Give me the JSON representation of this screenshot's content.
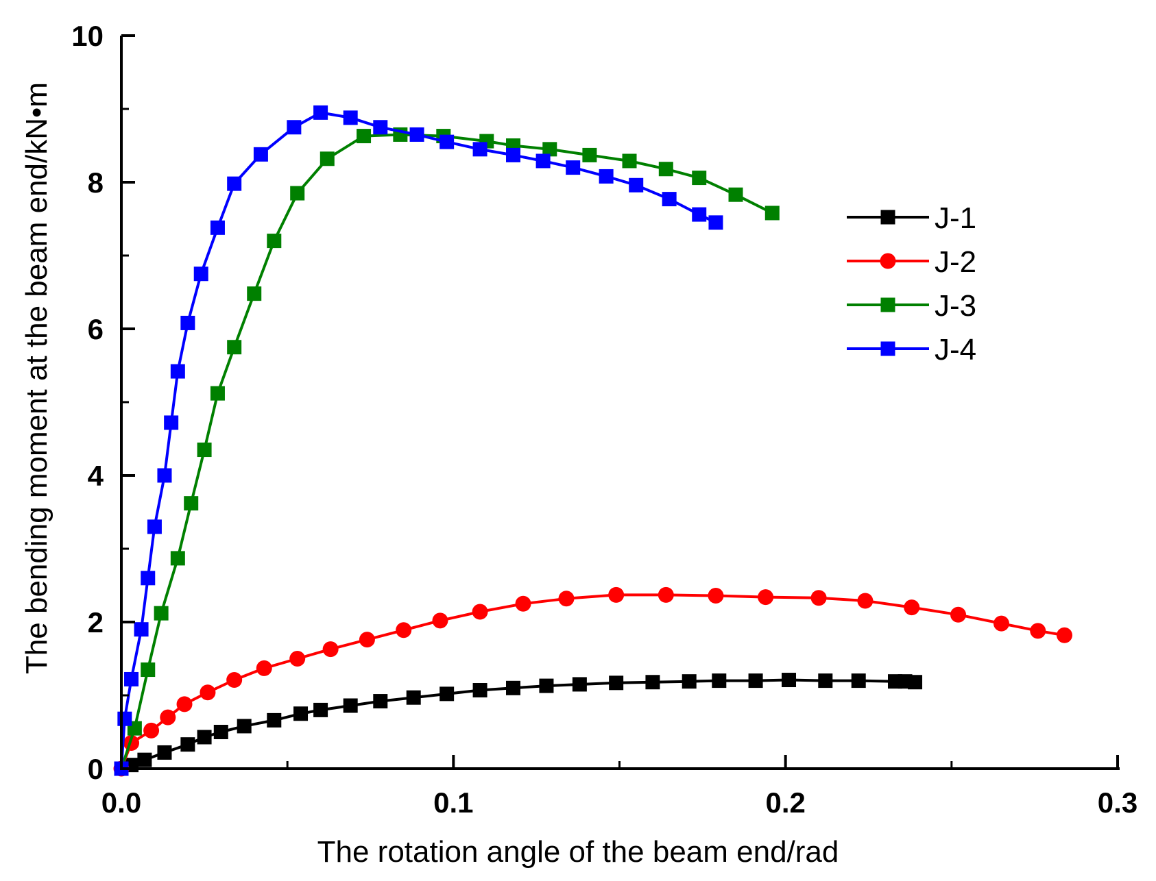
{
  "chart_data": {
    "type": "line",
    "title": "",
    "xlabel": "The rotation angle of the beam end/rad",
    "ylabel": "The bending moment at the beam end/kN•m",
    "xlim": [
      0.0,
      0.3
    ],
    "ylim": [
      0,
      10
    ],
    "xticks": [
      0.0,
      0.1,
      0.2,
      0.3
    ],
    "xtick_labels": [
      "0.0",
      "0.1",
      "0.2",
      "0.3"
    ],
    "yticks": [
      0,
      2,
      4,
      6,
      8,
      10
    ],
    "ytick_labels": [
      "0",
      "2",
      "4",
      "6",
      "8",
      "10"
    ],
    "grid": false,
    "legend_position": "right",
    "series": [
      {
        "name": "J-1",
        "color": "#000000",
        "marker": "square",
        "x": [
          0.0,
          0.003,
          0.007,
          0.013,
          0.02,
          0.025,
          0.03,
          0.037,
          0.046,
          0.054,
          0.06,
          0.069,
          0.078,
          0.088,
          0.098,
          0.108,
          0.118,
          0.128,
          0.138,
          0.149,
          0.16,
          0.171,
          0.18,
          0.191,
          0.201,
          0.212,
          0.222,
          0.233,
          0.236,
          0.239
        ],
        "y": [
          0.0,
          0.05,
          0.12,
          0.22,
          0.33,
          0.43,
          0.5,
          0.58,
          0.66,
          0.75,
          0.8,
          0.86,
          0.92,
          0.97,
          1.02,
          1.07,
          1.1,
          1.13,
          1.15,
          1.17,
          1.18,
          1.19,
          1.2,
          1.2,
          1.21,
          1.2,
          1.2,
          1.19,
          1.19,
          1.18
        ]
      },
      {
        "name": "J-2",
        "color": "#ff0000",
        "marker": "circle",
        "x": [
          0.0,
          0.003,
          0.009,
          0.014,
          0.019,
          0.026,
          0.034,
          0.043,
          0.053,
          0.063,
          0.074,
          0.085,
          0.096,
          0.108,
          0.121,
          0.134,
          0.149,
          0.164,
          0.179,
          0.194,
          0.21,
          0.224,
          0.238,
          0.252,
          0.265,
          0.276,
          0.284
        ],
        "y": [
          0.0,
          0.35,
          0.52,
          0.7,
          0.88,
          1.04,
          1.21,
          1.37,
          1.5,
          1.63,
          1.76,
          1.89,
          2.02,
          2.14,
          2.25,
          2.32,
          2.37,
          2.37,
          2.36,
          2.34,
          2.33,
          2.29,
          2.2,
          2.1,
          1.98,
          1.88,
          1.82
        ]
      },
      {
        "name": "J-3",
        "color": "#008000",
        "marker": "square",
        "x": [
          0.0,
          0.004,
          0.008,
          0.012,
          0.017,
          0.021,
          0.025,
          0.029,
          0.034,
          0.04,
          0.046,
          0.053,
          0.062,
          0.073,
          0.084,
          0.097,
          0.11,
          0.118,
          0.129,
          0.141,
          0.153,
          0.164,
          0.174,
          0.185,
          0.196
        ],
        "y": [
          0.0,
          0.55,
          1.35,
          2.12,
          2.87,
          3.62,
          4.35,
          5.12,
          5.75,
          6.48,
          7.2,
          7.85,
          8.32,
          8.63,
          8.65,
          8.63,
          8.56,
          8.5,
          8.45,
          8.37,
          8.29,
          8.18,
          8.06,
          7.83,
          7.58
        ]
      },
      {
        "name": "J-4",
        "color": "#0000ff",
        "marker": "square",
        "x": [
          0.0,
          0.001,
          0.003,
          0.006,
          0.008,
          0.01,
          0.013,
          0.015,
          0.017,
          0.02,
          0.024,
          0.029,
          0.034,
          0.042,
          0.052,
          0.06,
          0.069,
          0.078,
          0.089,
          0.098,
          0.108,
          0.118,
          0.127,
          0.136,
          0.146,
          0.155,
          0.165,
          0.174,
          0.179
        ],
        "y": [
          0.0,
          0.68,
          1.22,
          1.9,
          2.6,
          3.3,
          4.0,
          4.72,
          5.42,
          6.08,
          6.75,
          7.38,
          7.98,
          8.38,
          8.75,
          8.95,
          8.88,
          8.75,
          8.65,
          8.55,
          8.45,
          8.37,
          8.29,
          8.2,
          8.08,
          7.96,
          7.77,
          7.56,
          7.45
        ]
      }
    ]
  }
}
